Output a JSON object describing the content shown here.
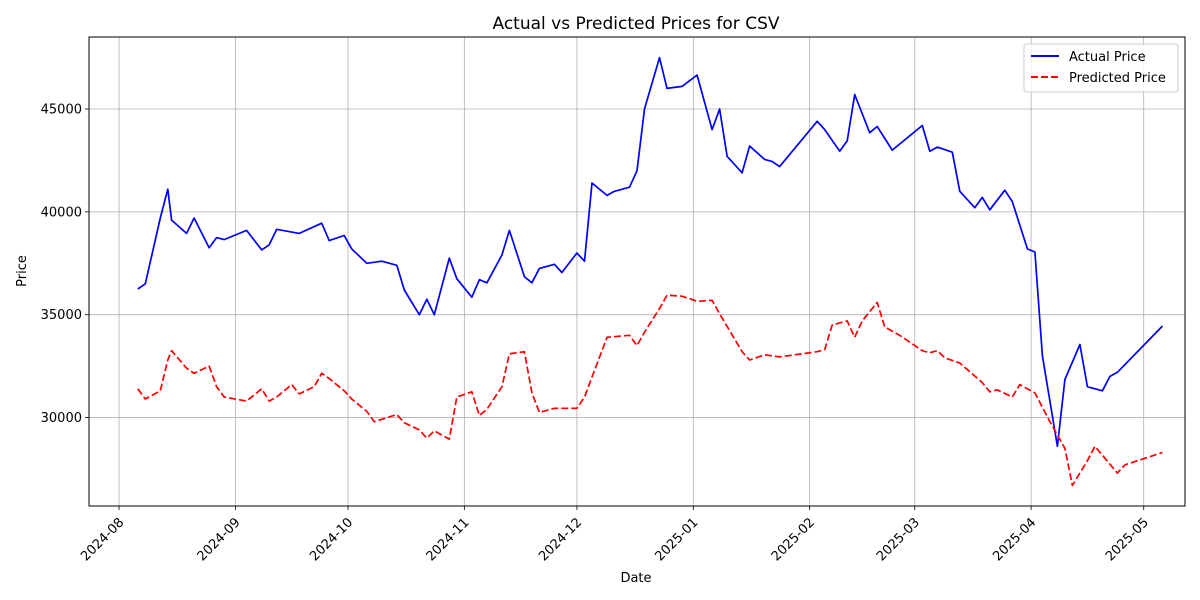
{
  "chart_data": {
    "type": "line",
    "title": "Actual vs Predicted Prices for CSV",
    "xlabel": "Date",
    "ylabel": "Price",
    "xlim": [
      "2024-07-24",
      "2025-05-12"
    ],
    "ylim": [
      25700,
      48500
    ],
    "x_ticks": [
      "2024-08-01",
      "2024-09-01",
      "2024-10-01",
      "2024-11-01",
      "2024-12-01",
      "2025-01-01",
      "2025-02-01",
      "2025-03-01",
      "2025-04-01",
      "2025-05-01"
    ],
    "x_tick_labels": [
      "2024-08",
      "2024-09",
      "2024-10",
      "2024-11",
      "2024-12",
      "2025-01",
      "2025-02",
      "2025-03",
      "2025-04",
      "2025-05"
    ],
    "y_ticks": [
      30000,
      35000,
      40000,
      45000
    ],
    "y_tick_labels": [
      "30000",
      "35000",
      "40000",
      "45000"
    ],
    "grid": true,
    "legend_position": "top-right",
    "series": [
      {
        "name": "Actual Price",
        "color": "#0000ff",
        "style": "solid",
        "points": [
          [
            "2024-08-06",
            36250
          ],
          [
            "2024-08-08",
            36500
          ],
          [
            "2024-08-12",
            39700
          ],
          [
            "2024-08-14",
            41100
          ],
          [
            "2024-08-15",
            39600
          ],
          [
            "2024-08-19",
            38950
          ],
          [
            "2024-08-21",
            39700
          ],
          [
            "2024-08-25",
            38250
          ],
          [
            "2024-08-27",
            38750
          ],
          [
            "2024-08-29",
            38650
          ],
          [
            "2024-09-04",
            39100
          ],
          [
            "2024-09-08",
            38150
          ],
          [
            "2024-09-10",
            38400
          ],
          [
            "2024-09-12",
            39150
          ],
          [
            "2024-09-18",
            38950
          ],
          [
            "2024-09-24",
            39450
          ],
          [
            "2024-09-26",
            38600
          ],
          [
            "2024-09-30",
            38850
          ],
          [
            "2024-10-02",
            38200
          ],
          [
            "2024-10-06",
            37500
          ],
          [
            "2024-10-10",
            37600
          ],
          [
            "2024-10-14",
            37400
          ],
          [
            "2024-10-16",
            36200
          ],
          [
            "2024-10-20",
            35000
          ],
          [
            "2024-10-22",
            35750
          ],
          [
            "2024-10-24",
            35000
          ],
          [
            "2024-10-28",
            37750
          ],
          [
            "2024-10-30",
            36750
          ],
          [
            "2024-11-03",
            35850
          ],
          [
            "2024-11-05",
            36700
          ],
          [
            "2024-11-07",
            36550
          ],
          [
            "2024-11-11",
            37900
          ],
          [
            "2024-11-13",
            39100
          ],
          [
            "2024-11-17",
            36850
          ],
          [
            "2024-11-19",
            36550
          ],
          [
            "2024-11-21",
            37250
          ],
          [
            "2024-11-25",
            37450
          ],
          [
            "2024-11-27",
            37050
          ],
          [
            "2024-12-01",
            38000
          ],
          [
            "2024-12-03",
            37600
          ],
          [
            "2024-12-05",
            41400
          ],
          [
            "2024-12-09",
            40800
          ],
          [
            "2024-12-11",
            41000
          ],
          [
            "2024-12-15",
            41200
          ],
          [
            "2024-12-17",
            42000
          ],
          [
            "2024-12-19",
            45000
          ],
          [
            "2024-12-23",
            47500
          ],
          [
            "2024-12-25",
            46000
          ],
          [
            "2024-12-29",
            46100
          ],
          [
            "2025-01-02",
            46650
          ],
          [
            "2025-01-06",
            44000
          ],
          [
            "2025-01-08",
            45000
          ],
          [
            "2025-01-10",
            42700
          ],
          [
            "2025-01-14",
            41900
          ],
          [
            "2025-01-16",
            43200
          ],
          [
            "2025-01-20",
            42550
          ],
          [
            "2025-01-22",
            42450
          ],
          [
            "2025-01-24",
            42200
          ],
          [
            "2025-02-03",
            44400
          ],
          [
            "2025-02-05",
            44000
          ],
          [
            "2025-02-09",
            42950
          ],
          [
            "2025-02-11",
            43450
          ],
          [
            "2025-02-13",
            45700
          ],
          [
            "2025-02-17",
            43850
          ],
          [
            "2025-02-19",
            44150
          ],
          [
            "2025-02-23",
            43000
          ],
          [
            "2025-03-03",
            44200
          ],
          [
            "2025-03-05",
            42950
          ],
          [
            "2025-03-07",
            43150
          ],
          [
            "2025-03-11",
            42900
          ],
          [
            "2025-03-13",
            41000
          ],
          [
            "2025-03-17",
            40200
          ],
          [
            "2025-03-19",
            40700
          ],
          [
            "2025-03-21",
            40100
          ],
          [
            "2025-03-25",
            41050
          ],
          [
            "2025-03-27",
            40500
          ],
          [
            "2025-03-31",
            38200
          ],
          [
            "2025-04-02",
            38050
          ],
          [
            "2025-04-04",
            33000
          ],
          [
            "2025-04-08",
            28600
          ],
          [
            "2025-04-10",
            31850
          ],
          [
            "2025-04-14",
            33550
          ],
          [
            "2025-04-16",
            31500
          ],
          [
            "2025-04-20",
            31300
          ],
          [
            "2025-04-22",
            32000
          ],
          [
            "2025-04-24",
            32200
          ],
          [
            "2025-05-06",
            34450
          ]
        ]
      },
      {
        "name": "Predicted Price",
        "color": "#ff0000",
        "style": "dashed",
        "points": [
          [
            "2024-08-06",
            31400
          ],
          [
            "2024-08-08",
            30900
          ],
          [
            "2024-08-12",
            31300
          ],
          [
            "2024-08-14",
            32800
          ],
          [
            "2024-08-15",
            33250
          ],
          [
            "2024-08-19",
            32400
          ],
          [
            "2024-08-21",
            32150
          ],
          [
            "2024-08-25",
            32500
          ],
          [
            "2024-08-27",
            31500
          ],
          [
            "2024-08-29",
            31000
          ],
          [
            "2024-09-04",
            30800
          ],
          [
            "2024-09-08",
            31400
          ],
          [
            "2024-09-10",
            30800
          ],
          [
            "2024-09-12",
            31000
          ],
          [
            "2024-09-16",
            31600
          ],
          [
            "2024-09-18",
            31150
          ],
          [
            "2024-09-22",
            31500
          ],
          [
            "2024-09-24",
            32150
          ],
          [
            "2024-09-26",
            31900
          ],
          [
            "2024-09-30",
            31300
          ],
          [
            "2024-10-02",
            30900
          ],
          [
            "2024-10-06",
            30300
          ],
          [
            "2024-10-08",
            29800
          ],
          [
            "2024-10-14",
            30150
          ],
          [
            "2024-10-16",
            29750
          ],
          [
            "2024-10-20",
            29400
          ],
          [
            "2024-10-22",
            29000
          ],
          [
            "2024-10-24",
            29350
          ],
          [
            "2024-10-28",
            28950
          ],
          [
            "2024-10-30",
            31000
          ],
          [
            "2024-11-03",
            31250
          ],
          [
            "2024-11-05",
            30100
          ],
          [
            "2024-11-07",
            30400
          ],
          [
            "2024-11-11",
            31500
          ],
          [
            "2024-11-13",
            33100
          ],
          [
            "2024-11-17",
            33200
          ],
          [
            "2024-11-19",
            31200
          ],
          [
            "2024-11-21",
            30250
          ],
          [
            "2024-11-25",
            30450
          ],
          [
            "2024-11-29",
            30450
          ],
          [
            "2024-12-01",
            30450
          ],
          [
            "2024-12-03",
            31000
          ],
          [
            "2024-12-09",
            33900
          ],
          [
            "2024-12-15",
            34000
          ],
          [
            "2024-12-17",
            33500
          ],
          [
            "2024-12-19",
            34150
          ],
          [
            "2024-12-23",
            35300
          ],
          [
            "2024-12-25",
            35950
          ],
          [
            "2024-12-29",
            35900
          ],
          [
            "2025-01-02",
            35650
          ],
          [
            "2025-01-06",
            35700
          ],
          [
            "2025-01-08",
            35050
          ],
          [
            "2025-01-14",
            33200
          ],
          [
            "2025-01-16",
            32800
          ],
          [
            "2025-01-20",
            33050
          ],
          [
            "2025-01-24",
            32950
          ],
          [
            "2025-02-03",
            33200
          ],
          [
            "2025-02-05",
            33300
          ],
          [
            "2025-02-07",
            34500
          ],
          [
            "2025-02-11",
            34700
          ],
          [
            "2025-02-13",
            33900
          ],
          [
            "2025-02-15",
            34700
          ],
          [
            "2025-02-19",
            35600
          ],
          [
            "2025-02-21",
            34400
          ],
          [
            "2025-02-25",
            34000
          ],
          [
            "2025-03-03",
            33250
          ],
          [
            "2025-03-05",
            33150
          ],
          [
            "2025-03-07",
            33250
          ],
          [
            "2025-03-09",
            32900
          ],
          [
            "2025-03-13",
            32650
          ],
          [
            "2025-03-19",
            31700
          ],
          [
            "2025-03-21",
            31250
          ],
          [
            "2025-03-23",
            31350
          ],
          [
            "2025-03-27",
            31000
          ],
          [
            "2025-03-29",
            31600
          ],
          [
            "2025-04-02",
            31200
          ],
          [
            "2025-04-06",
            29800
          ],
          [
            "2025-04-10",
            28500
          ],
          [
            "2025-04-12",
            26700
          ],
          [
            "2025-04-16",
            27900
          ],
          [
            "2025-04-18",
            28600
          ],
          [
            "2025-04-24",
            27300
          ],
          [
            "2025-04-26",
            27700
          ],
          [
            "2025-05-06",
            28300
          ]
        ]
      }
    ]
  }
}
